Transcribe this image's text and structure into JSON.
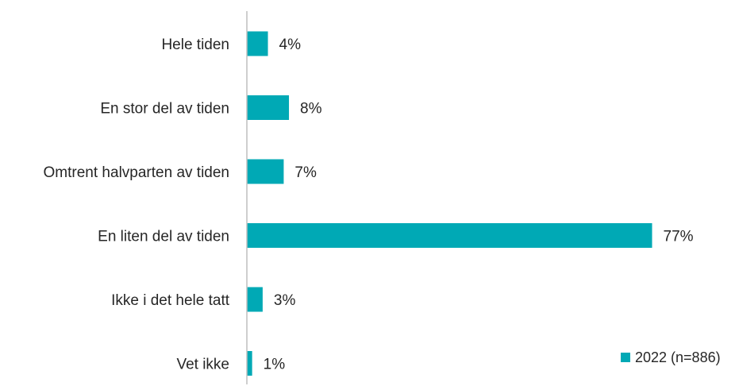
{
  "chart_data": {
    "type": "bar",
    "orientation": "horizontal",
    "categories": [
      "Hele tiden",
      "En stor del av tiden",
      "Omtrent halvparten av tiden",
      "En liten del av tiden",
      "Ikke i det hele tatt",
      "Vet ikke"
    ],
    "series": [
      {
        "name": "2022 (n=886)",
        "values": [
          4,
          8,
          7,
          77,
          3,
          1
        ],
        "labels": [
          "4%",
          "8%",
          "7%",
          "77%",
          "3%",
          "1%"
        ],
        "color": "#00A9B5"
      }
    ],
    "title": "",
    "xlabel": "",
    "ylabel": "",
    "xlim": [
      0,
      100
    ],
    "grid": false,
    "legend_position": "bottom-right",
    "axis_color": "#BFBFBF"
  }
}
